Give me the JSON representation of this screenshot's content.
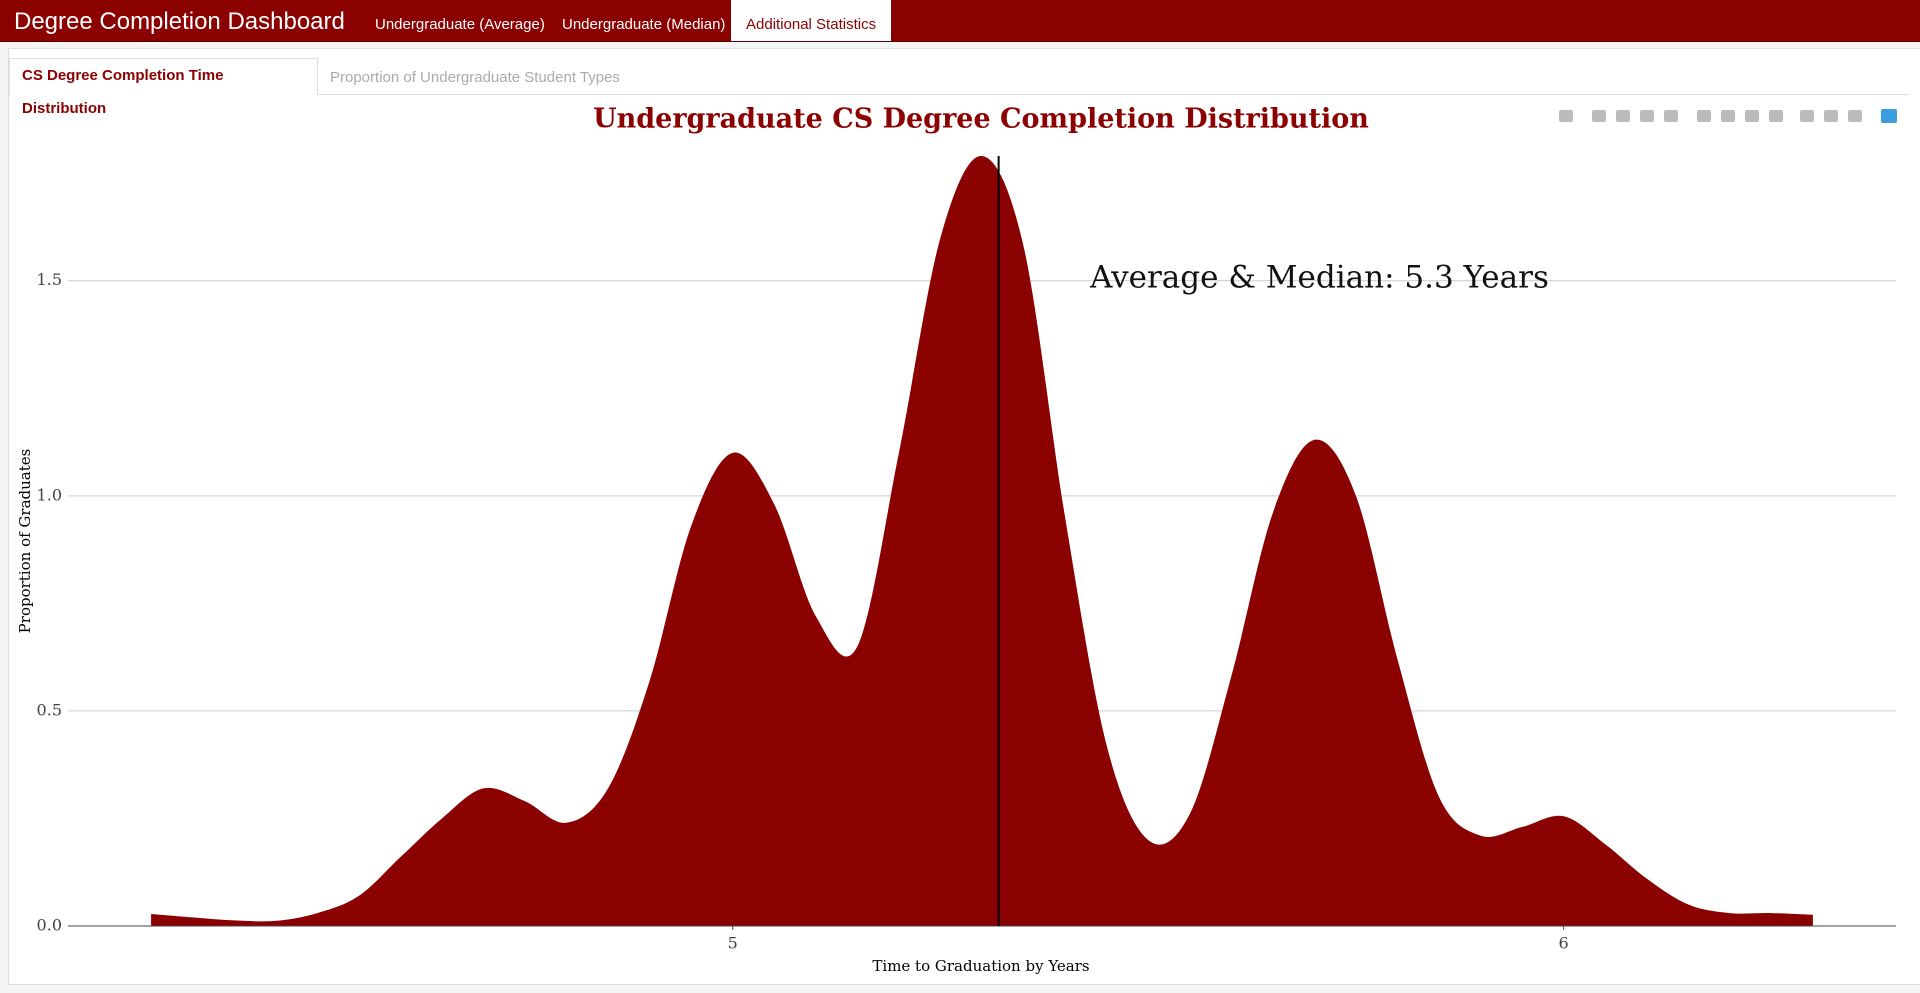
{
  "nav": {
    "brand": "Degree Completion Dashboard",
    "tabs": [
      "Undergraduate (Average)",
      "Undergraduate (Median)",
      "Additional Statistics"
    ]
  },
  "subtabs": [
    "CS Degree Completion Time Distribution",
    "Proportion of Undergraduate Student Types"
  ],
  "chart_data": {
    "type": "area",
    "title": "Undergraduate CS Degree Completion Distribution",
    "x_label": "Time to Graduation by Years",
    "y_label": "Proportion of Graduates",
    "annotation": "Average & Median: 5.3 Years",
    "vline": 5.32,
    "x": [
      4.3,
      4.35,
      4.4,
      4.45,
      4.5,
      4.55,
      4.6,
      4.65,
      4.7,
      4.75,
      4.8,
      4.85,
      4.9,
      4.95,
      5.0,
      5.05,
      5.1,
      5.15,
      5.2,
      5.25,
      5.3,
      5.35,
      5.4,
      5.45,
      5.5,
      5.55,
      5.6,
      5.65,
      5.7,
      5.75,
      5.8,
      5.85,
      5.9,
      5.95,
      6.0,
      6.05,
      6.1,
      6.15,
      6.2,
      6.25,
      6.3
    ],
    "values": [
      0.028,
      0.02,
      0.013,
      0.012,
      0.03,
      0.07,
      0.16,
      0.25,
      0.32,
      0.29,
      0.24,
      0.32,
      0.57,
      0.93,
      1.1,
      0.98,
      0.72,
      0.65,
      1.1,
      1.6,
      1.79,
      1.58,
      0.95,
      0.42,
      0.2,
      0.26,
      0.58,
      0.96,
      1.13,
      1.0,
      0.62,
      0.3,
      0.21,
      0.23,
      0.255,
      0.19,
      0.11,
      0.05,
      0.03,
      0.03,
      0.026
    ],
    "color": "#8b0000",
    "xlim": [
      4.2,
      6.4
    ],
    "ylim": [
      0,
      1.79
    ],
    "xticks": [
      5,
      6
    ],
    "yticks": [
      {
        "value": 0,
        "label": "0.0"
      },
      0.5,
      {
        "value": 1,
        "label": "1.0"
      },
      1.5
    ],
    "grid": true
  }
}
